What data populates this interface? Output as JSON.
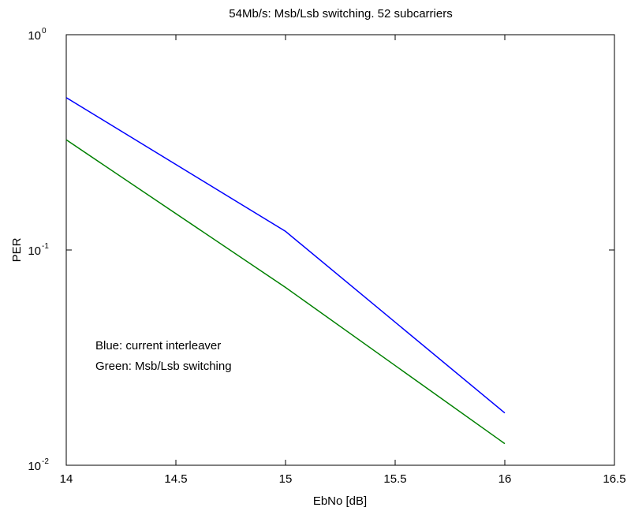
{
  "chart_data": {
    "type": "line",
    "title": "54Mb/s: Msb/Lsb switching. 52 subcarriers",
    "xlabel": "EbNo [dB]",
    "ylabel": "PER",
    "xlim": [
      14,
      16.5
    ],
    "ylim": [
      0.01,
      1
    ],
    "yscale": "log",
    "grid": false,
    "xticks": [
      14,
      14.5,
      15,
      15.5,
      16,
      16.5
    ],
    "xtick_labels": [
      "14",
      "14.5",
      "15",
      "15.5",
      "16",
      "16.5"
    ],
    "yticks": [
      {
        "value": 1,
        "base": "10",
        "exp": "0"
      },
      {
        "value": 0.1,
        "base": "10",
        "exp": "-1"
      },
      {
        "value": 0.01,
        "base": "10",
        "exp": "-2"
      }
    ],
    "series": [
      {
        "color": "#0000ff",
        "x": [
          14,
          15,
          16
        ],
        "y": [
          0.51,
          0.122,
          0.0175
        ]
      },
      {
        "color": "#008000",
        "x": [
          14,
          15,
          16
        ],
        "y": [
          0.325,
          0.067,
          0.0126
        ]
      }
    ],
    "annotations": [
      "Blue: current interleaver",
      "Green: Msb/Lsb switching"
    ]
  }
}
